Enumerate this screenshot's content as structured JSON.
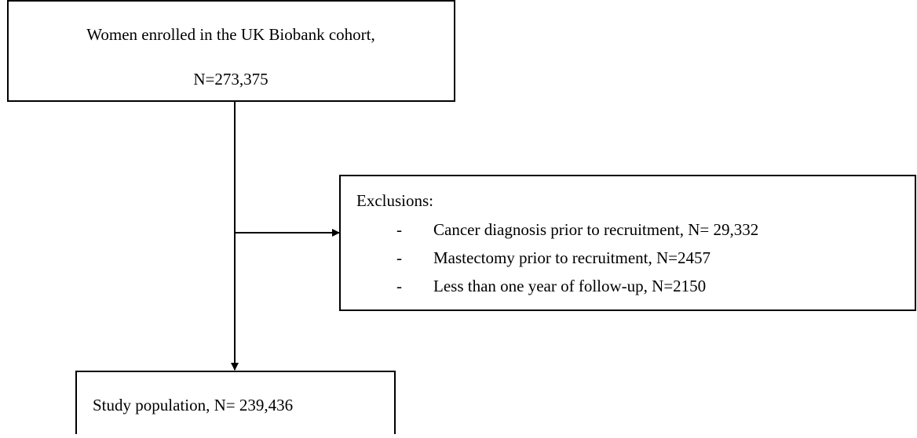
{
  "nodes": [
    {
      "label": "Women enrolled in the UK Biobank cohort,",
      "sublabel": "N=273,375"
    },
    {
      "label": "Exclusions:",
      "items": [
        "Cancer diagnosis prior to recruitment, N= 29,332",
        "Mastectomy prior to recruitment, N=2457",
        "Less than one year of follow-up, N=2150"
      ]
    },
    {
      "label": "Study population, N= 239,436"
    }
  ]
}
